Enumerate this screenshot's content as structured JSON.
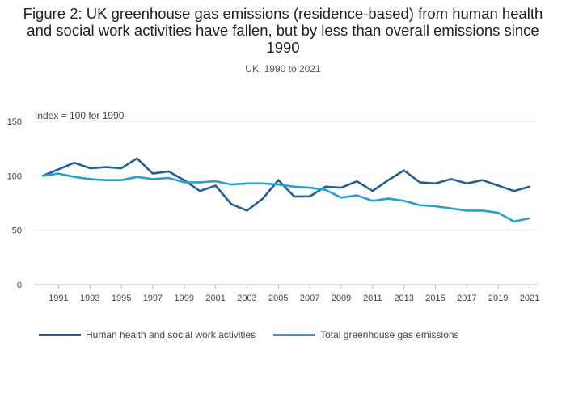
{
  "header": {
    "title": "Figure 2: UK greenhouse gas emissions (residence-based) from human health and social work activities have fallen, but by less than overall emissions since 1990",
    "subtitle": "UK, 1990 to 2021"
  },
  "chart_data": {
    "type": "line",
    "title": "Figure 2: UK greenhouse gas emissions (residence-based) from human health and social work activities have fallen, but by less than overall emissions since 1990",
    "subtitle": "UK, 1990 to 2021",
    "ylabel": "Index = 100 for 1990",
    "xlabel": "",
    "ylim": [
      0,
      150
    ],
    "yticks": [
      0,
      50,
      100,
      150
    ],
    "xticks": [
      1991,
      1993,
      1995,
      1997,
      1999,
      2001,
      2003,
      2005,
      2007,
      2009,
      2011,
      2013,
      2015,
      2017,
      2019,
      2021
    ],
    "grid": true,
    "legend_position": "bottom-left",
    "x": [
      1990,
      1991,
      1992,
      1993,
      1994,
      1995,
      1996,
      1997,
      1998,
      1999,
      2000,
      2001,
      2002,
      2003,
      2004,
      2005,
      2006,
      2007,
      2008,
      2009,
      2010,
      2011,
      2012,
      2013,
      2014,
      2015,
      2016,
      2017,
      2018,
      2019,
      2020,
      2021
    ],
    "series": [
      {
        "name": "Human health and social work activities",
        "color": "#206095",
        "values": [
          100,
          106,
          112,
          107,
          108,
          107,
          116,
          102,
          104,
          96,
          86,
          91,
          74,
          68,
          79,
          96,
          81,
          81,
          90,
          89,
          95,
          86,
          96,
          105,
          94,
          93,
          97,
          93,
          96,
          91,
          86,
          90
        ]
      },
      {
        "name": "Total greenhouse gas emissions",
        "color": "#27A0CC",
        "values": [
          100,
          102,
          99,
          97,
          96,
          96,
          99,
          97,
          98,
          94,
          94,
          95,
          92,
          93,
          93,
          92,
          90,
          89,
          87,
          80,
          82,
          77,
          79,
          77,
          73,
          72,
          70,
          68,
          68,
          66,
          58,
          61
        ]
      }
    ]
  }
}
